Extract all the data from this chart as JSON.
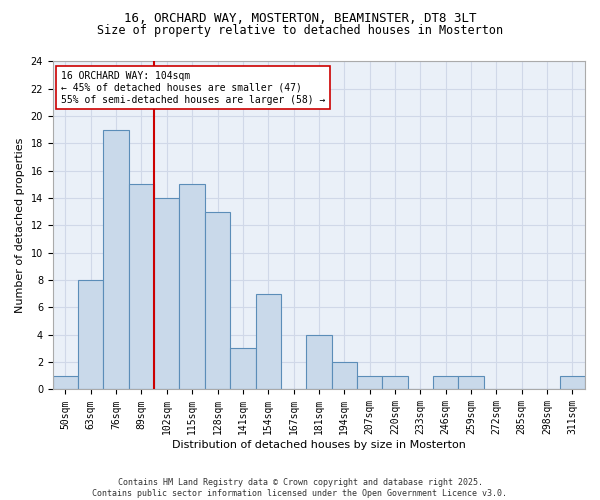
{
  "title": "16, ORCHARD WAY, MOSTERTON, BEAMINSTER, DT8 3LT",
  "subtitle": "Size of property relative to detached houses in Mosterton",
  "xlabel": "Distribution of detached houses by size in Mosterton",
  "ylabel": "Number of detached properties",
  "categories": [
    "50sqm",
    "63sqm",
    "76sqm",
    "89sqm",
    "102sqm",
    "115sqm",
    "128sqm",
    "141sqm",
    "154sqm",
    "167sqm",
    "181sqm",
    "194sqm",
    "207sqm",
    "220sqm",
    "233sqm",
    "246sqm",
    "259sqm",
    "272sqm",
    "285sqm",
    "298sqm",
    "311sqm"
  ],
  "values": [
    1,
    8,
    19,
    15,
    14,
    15,
    13,
    3,
    7,
    0,
    4,
    2,
    1,
    1,
    0,
    1,
    1,
    0,
    0,
    0,
    1
  ],
  "bar_color": "#c9d9ea",
  "bar_edge_color": "#5b8db8",
  "vline_index": 4,
  "vline_color": "#cc0000",
  "annotation_text": "16 ORCHARD WAY: 104sqm\n← 45% of detached houses are smaller (47)\n55% of semi-detached houses are larger (58) →",
  "annotation_box_color": "#ffffff",
  "annotation_box_edge": "#cc0000",
  "ylim": [
    0,
    24
  ],
  "yticks": [
    0,
    2,
    4,
    6,
    8,
    10,
    12,
    14,
    16,
    18,
    20,
    22,
    24
  ],
  "grid_color": "#d0d8e8",
  "background_color": "#eaf0f8",
  "footer": "Contains HM Land Registry data © Crown copyright and database right 2025.\nContains public sector information licensed under the Open Government Licence v3.0.",
  "title_fontsize": 9,
  "subtitle_fontsize": 8.5,
  "xlabel_fontsize": 8,
  "ylabel_fontsize": 8,
  "tick_fontsize": 7,
  "annotation_fontsize": 7,
  "footer_fontsize": 6
}
